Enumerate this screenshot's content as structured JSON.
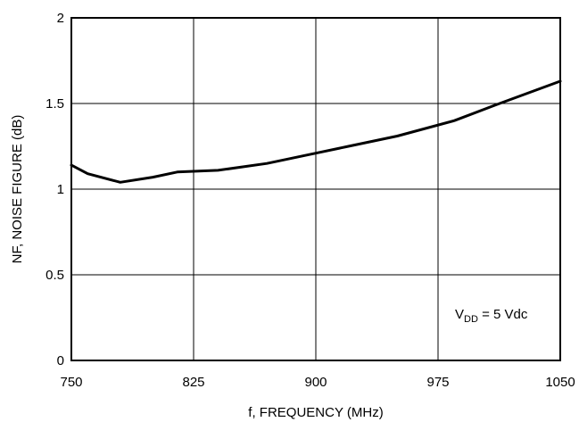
{
  "chart_data": {
    "type": "line",
    "title": "",
    "xlabel": "f, FREQUENCY (MHz)",
    "ylabel": "NF, NOISE FIGURE (dB)",
    "xlim": [
      750,
      1050
    ],
    "ylim": [
      0,
      2
    ],
    "xticks": [
      750,
      825,
      900,
      975,
      1050
    ],
    "yticks": [
      0,
      0.5,
      1,
      1.5,
      2
    ],
    "xtick_labels": [
      "750",
      "825",
      "900",
      "975",
      "1050"
    ],
    "ytick_labels": [
      "0",
      "0.5",
      "1",
      "1.5",
      "2"
    ],
    "grid": true,
    "legend": "none",
    "annotation": {
      "v": "V",
      "sub": "DD",
      "rest": " = 5 Vdc"
    },
    "series": [
      {
        "x": [
          750,
          760,
          780,
          800,
          815,
          840,
          870,
          900,
          920,
          950,
          985,
          1010,
          1050
        ],
        "y": [
          1.14,
          1.09,
          1.04,
          1.07,
          1.1,
          1.11,
          1.15,
          1.21,
          1.25,
          1.31,
          1.4,
          1.49,
          1.63
        ],
        "color": "#000000"
      }
    ]
  }
}
